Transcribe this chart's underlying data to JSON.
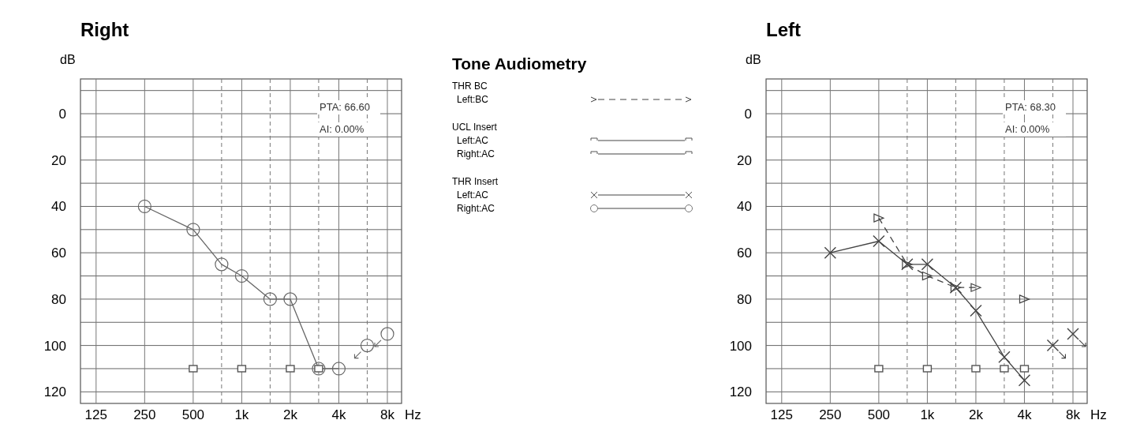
{
  "chart_data": [
    {
      "type": "line",
      "title": "Right",
      "ylabel": "dB",
      "xlabel": "Hz",
      "log": "x",
      "xlim": [
        100,
        9800
      ],
      "ylim": [
        125,
        -15
      ],
      "xticks": [
        125,
        250,
        500,
        {
          "value": 750,
          "label": null
        },
        {
          "value": 1000,
          "label": "1k"
        },
        {
          "value": 1500,
          "label": null
        },
        {
          "value": 2000,
          "label": "2k"
        },
        {
          "value": 3000,
          "label": null
        },
        {
          "value": 4000,
          "label": "4k"
        },
        {
          "value": 6000,
          "label": null
        },
        {
          "value": 8000,
          "label": "8k"
        }
      ],
      "yticks": [
        {
          "value": -10,
          "label": null
        },
        0,
        {
          "value": 10,
          "label": null
        },
        20,
        {
          "value": 30,
          "label": null
        },
        40,
        {
          "value": 50,
          "label": null
        },
        60,
        {
          "value": 70,
          "label": null
        },
        80,
        {
          "value": 90,
          "label": null
        },
        100,
        {
          "value": 110,
          "label": null
        },
        120
      ],
      "grid": true,
      "annotations": [
        "PTA: 66.60",
        "AI: 0.00%"
      ],
      "series": [
        {
          "type": "line",
          "color": "#666666",
          "marker": "circle",
          "line_style": "solid",
          "x": [
            250,
            500,
            750,
            1000,
            1500,
            2000,
            3000,
            4000
          ],
          "values": [
            40,
            50,
            65,
            70,
            80,
            80,
            110,
            110
          ]
        },
        {
          "type": "scatter",
          "color": "#666666",
          "marker": "circle",
          "x": [
            6000,
            8000
          ],
          "values": [
            100,
            95
          ]
        },
        {
          "type": "scatter",
          "color": "#555555",
          "marker": "square",
          "x": [
            500,
            1000,
            2000,
            3000
          ],
          "values": [
            110,
            110,
            110,
            110
          ]
        }
      ]
    },
    {
      "type": "other",
      "title": "Tone Audiometry",
      "annotations": [
        "THR BC",
        "Left:BC",
        "UCL Insert",
        "Left:AC",
        "Right:AC",
        "THR Insert",
        "Left:AC",
        "Right:AC"
      ]
    },
    {
      "type": "line",
      "title": "Left",
      "ylabel": "dB",
      "xlabel": "Hz",
      "log": "x",
      "xlim": [
        100,
        9800
      ],
      "ylim": [
        125,
        -15
      ],
      "xticks": [
        125,
        250,
        500,
        {
          "value": 750,
          "label": null
        },
        {
          "value": 1000,
          "label": "1k"
        },
        {
          "value": 1500,
          "label": null
        },
        {
          "value": 2000,
          "label": "2k"
        },
        {
          "value": 3000,
          "label": null
        },
        {
          "value": 4000,
          "label": "4k"
        },
        {
          "value": 6000,
          "label": null
        },
        {
          "value": 8000,
          "label": "8k"
        }
      ],
      "yticks": [
        {
          "value": -10,
          "label": null
        },
        0,
        {
          "value": 10,
          "label": null
        },
        20,
        {
          "value": 30,
          "label": null
        },
        40,
        {
          "value": 50,
          "label": null
        },
        60,
        {
          "value": 70,
          "label": null
        },
        80,
        {
          "value": 90,
          "label": null
        },
        100,
        {
          "value": 110,
          "label": null
        },
        120
      ],
      "grid": true,
      "annotations": [
        "PTA: 68.30",
        "AI: 0.00%"
      ],
      "series": [
        {
          "type": "line",
          "color": "#444444",
          "marker": "cross",
          "line_style": "solid",
          "x": [
            250,
            500,
            750,
            1000,
            1500,
            2000,
            3000,
            4000
          ],
          "values": [
            60,
            55,
            65,
            65,
            75,
            85,
            105,
            115
          ]
        },
        {
          "type": "scatter",
          "color": "#444444",
          "marker": "cross",
          "x": [
            6000,
            8000
          ],
          "values": [
            100,
            95
          ]
        },
        {
          "type": "line",
          "color": "#444444",
          "marker": "triangle",
          "line_style": "dashed",
          "x": [
            500,
            750,
            1000,
            1500,
            2000,
            3000,
            4000
          ],
          "values": [
            45,
            65,
            70,
            75,
            75,
            null,
            80
          ]
        },
        {
          "type": "scatter",
          "color": "#555555",
          "marker": "square",
          "x": [
            500,
            1000,
            2000,
            3000,
            4000
          ],
          "values": [
            110,
            110,
            110,
            110,
            110
          ]
        }
      ]
    }
  ]
}
